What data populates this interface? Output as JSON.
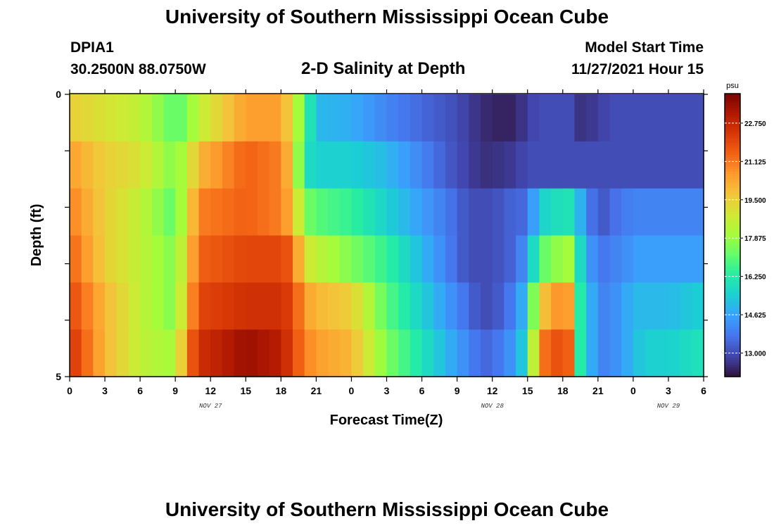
{
  "header": {
    "title": "University of Southern Mississippi Ocean Cube",
    "station": "DPIA1",
    "coordinates": "30.2500N  88.0750W",
    "subtitle": "2-D Salinity at Depth",
    "model_start_label": "Model Start Time",
    "model_start_value": "11/27/2021 Hour 15"
  },
  "footer": {
    "title": "University of Southern Mississippi Ocean Cube"
  },
  "colors": {
    "colormap": [
      "#30123b",
      "#4145ab",
      "#4675ed",
      "#39a2fc",
      "#1bcfd4",
      "#24eca6",
      "#61fc6c",
      "#a4fc3b",
      "#d1e834",
      "#f3c63a",
      "#fe9b2d",
      "#f36315",
      "#d93806",
      "#b11901",
      "#7a0403"
    ]
  },
  "chart_data": {
    "type": "heatmap",
    "title": "2-D Salinity at Depth",
    "xlabel": "Forecast Time(Z)",
    "ylabel": "Depth (ft)",
    "x_tick_labels": [
      "0",
      "3",
      "6",
      "9",
      "12",
      "15",
      "18",
      "21",
      "0",
      "3",
      "6",
      "9",
      "12",
      "15",
      "18",
      "21",
      "0",
      "3",
      "6"
    ],
    "x_range_hours": [
      0,
      54
    ],
    "y_tick_labels": [
      "0",
      "5"
    ],
    "y_range": [
      0,
      5
    ],
    "date_labels": [
      {
        "label": "NOV 27",
        "hour": 12
      },
      {
        "label": "NOV 28",
        "hour": 36
      },
      {
        "label": "NOV 29",
        "hour": 51
      }
    ],
    "colorbar": {
      "unit": "psu",
      "range": [
        12.0,
        24.0
      ],
      "ticks": [
        "22.750",
        "21.125",
        "19.500",
        "17.875",
        "16.250",
        "14.625",
        "13.000"
      ],
      "tick_values": [
        22.75,
        21.125,
        19.5,
        17.875,
        16.25,
        14.625,
        13.0
      ]
    },
    "depth_levels": [
      0.25,
      1.0,
      2.0,
      3.0,
      4.0,
      4.75
    ],
    "time_hours": [
      0,
      3,
      6,
      9,
      10,
      11,
      15,
      18,
      19,
      20,
      21,
      24,
      27,
      30,
      33,
      34,
      35,
      36,
      38,
      39,
      40,
      42,
      42.5,
      43,
      45,
      46,
      47,
      48,
      49,
      50,
      51,
      54
    ],
    "salinity_by_depth": [
      [
        19.5,
        19.0,
        18.5,
        17.0,
        17.5,
        18.5,
        20.5,
        20.5,
        19.0,
        17.0,
        15.0,
        14.8,
        14.0,
        13.5,
        13.0,
        12.7,
        12.5,
        12.3,
        12.3,
        12.8,
        13.0,
        13.0,
        13.0,
        12.5,
        12.7,
        13.0,
        13.0,
        13.0,
        13.0,
        13.0,
        13.0,
        13.0
      ],
      [
        20.5,
        19.5,
        19.0,
        17.5,
        18.5,
        20.0,
        21.5,
        21.0,
        19.5,
        16.0,
        15.5,
        15.5,
        15.0,
        14.0,
        13.0,
        12.8,
        12.5,
        12.5,
        12.7,
        13.0,
        13.0,
        13.0,
        13.0,
        13.0,
        13.0,
        13.0,
        13.0,
        13.0,
        13.0,
        13.0,
        13.0,
        13.0
      ],
      [
        21.0,
        19.5,
        18.5,
        17.0,
        19.0,
        21.0,
        21.5,
        21.0,
        20.0,
        17.5,
        17.0,
        16.5,
        15.5,
        14.5,
        13.5,
        13.0,
        13.0,
        13.0,
        13.5,
        13.5,
        15.5,
        16.0,
        16.0,
        15.5,
        13.0,
        13.5,
        13.8,
        14.0,
        14.0,
        14.0,
        14.0,
        14.0
      ],
      [
        21.5,
        19.5,
        18.5,
        17.5,
        19.5,
        21.5,
        22.0,
        22.0,
        21.5,
        19.0,
        18.5,
        17.5,
        16.5,
        15.0,
        13.5,
        13.0,
        13.0,
        13.0,
        13.5,
        14.5,
        17.0,
        18.0,
        18.0,
        16.5,
        13.5,
        14.0,
        14.0,
        14.5,
        14.5,
        14.5,
        14.5,
        14.5
      ],
      [
        22.0,
        20.0,
        18.5,
        17.5,
        20.0,
        22.0,
        22.5,
        22.5,
        22.0,
        20.5,
        20.0,
        19.5,
        17.0,
        15.5,
        14.0,
        13.5,
        13.0,
        13.0,
        14.0,
        15.5,
        19.5,
        21.0,
        20.5,
        17.0,
        14.0,
        14.0,
        14.5,
        15.0,
        15.0,
        15.0,
        15.0,
        15.5
      ],
      [
        22.5,
        20.0,
        18.5,
        18.0,
        21.0,
        22.5,
        23.5,
        23.0,
        22.0,
        21.0,
        20.5,
        20.0,
        17.5,
        16.0,
        14.5,
        14.0,
        13.5,
        13.5,
        14.5,
        16.0,
        21.0,
        22.0,
        21.5,
        17.0,
        14.0,
        14.0,
        14.5,
        15.0,
        15.5,
        15.5,
        15.5,
        16.0
      ]
    ]
  }
}
